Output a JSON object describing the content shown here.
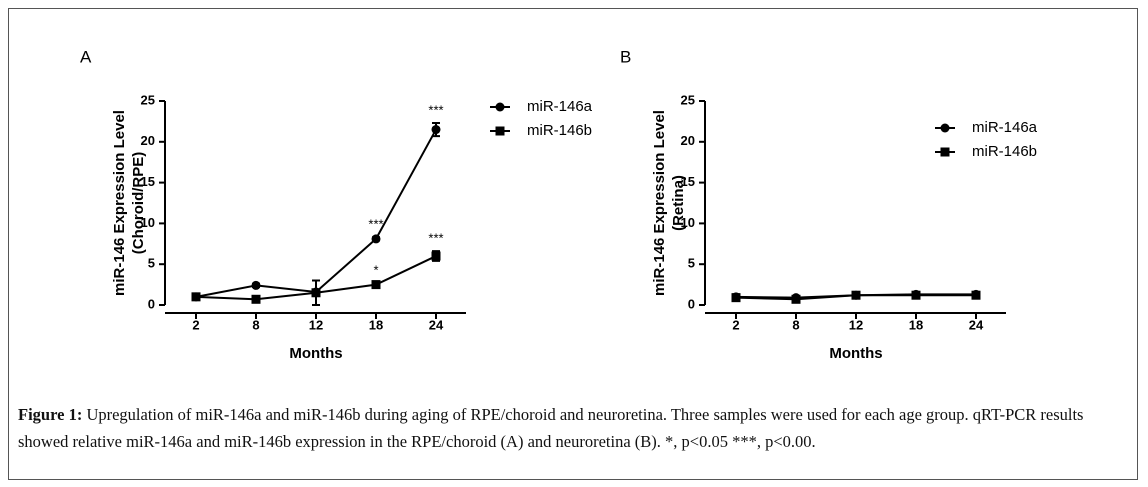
{
  "chart_data": [
    {
      "type": "line",
      "panel_label": "A",
      "ylabel": [
        "miR-146 Expression Level",
        "(Choroid/RPE)"
      ],
      "xlabel": "Months",
      "categories": [
        "2",
        "8",
        "12",
        "18",
        "24"
      ],
      "ylim": [
        0,
        25
      ],
      "yticks": [
        0,
        5,
        10,
        15,
        20,
        25
      ],
      "grid": false,
      "legend": "right",
      "series": [
        {
          "name": "miR-146a",
          "color": "#000000",
          "marker": "circle",
          "values": [
            1.0,
            2.4,
            1.6,
            8.1,
            21.5
          ],
          "errors": [
            0.1,
            0.2,
            0.3,
            0.2,
            0.8
          ]
        },
        {
          "name": "miR-146b",
          "color": "#000000",
          "marker": "square",
          "values": [
            1.0,
            0.7,
            1.5,
            2.5,
            6.0
          ],
          "errors": [
            0.1,
            0.1,
            1.5,
            0.2,
            0.6
          ]
        }
      ],
      "annotations": [
        {
          "text": "***",
          "category": "18",
          "series": "miR-146a"
        },
        {
          "text": "***",
          "category": "24",
          "series": "miR-146a"
        },
        {
          "text": "*",
          "category": "18",
          "series": "miR-146b"
        },
        {
          "text": "***",
          "category": "24",
          "series": "miR-146b"
        }
      ]
    },
    {
      "type": "line",
      "panel_label": "B",
      "ylabel": [
        "miR-146 Expression Level",
        "(Retina)"
      ],
      "xlabel": "Months",
      "categories": [
        "2",
        "8",
        "12",
        "18",
        "24"
      ],
      "ylim": [
        0,
        25
      ],
      "yticks": [
        0,
        5,
        10,
        15,
        20,
        25
      ],
      "grid": false,
      "legend": "upper right",
      "series": [
        {
          "name": "miR-146a",
          "color": "#000000",
          "marker": "circle",
          "values": [
            1.0,
            0.9,
            1.2,
            1.3,
            1.3
          ],
          "errors": [
            0.3,
            0.2,
            0.2,
            0.2,
            0.2
          ]
        },
        {
          "name": "miR-146b",
          "color": "#000000",
          "marker": "square",
          "values": [
            0.9,
            0.7,
            1.2,
            1.2,
            1.2
          ],
          "errors": [
            0.3,
            0.2,
            0.2,
            0.2,
            0.3
          ]
        }
      ],
      "annotations": []
    }
  ],
  "caption": {
    "label": "Figure 1:",
    "text": "Upregulation of miR-146a and miR-146b during aging of RPE/choroid and neuroretina. Three samples were used for each age group. qRT-PCR results showed relative miR-146a and miR-146b expression in the RPE/choroid (A) and neuroretina (B). *, p<0.05 ***, p<0.00."
  }
}
